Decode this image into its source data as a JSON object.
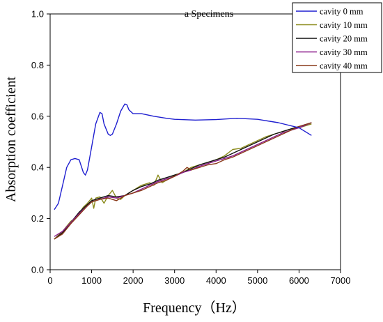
{
  "chart_data": {
    "type": "line",
    "title": "a Specimens",
    "xlabel": "Frequency（Hz）",
    "ylabel": "Absorption coefficient",
    "xlim": [
      0,
      7000
    ],
    "ylim": [
      0.0,
      1.0
    ],
    "xticks": [
      0,
      1000,
      2000,
      3000,
      4000,
      5000,
      6000,
      7000
    ],
    "yticks": [
      0.0,
      0.2,
      0.4,
      0.6,
      0.8,
      1.0
    ],
    "xtick_labels": [
      "0",
      "1000",
      "2000",
      "3000",
      "4000",
      "5000",
      "6000",
      "7000"
    ],
    "ytick_labels": [
      "0.0",
      "0.2",
      "0.4",
      "0.6",
      "0.8",
      "1.0"
    ],
    "grid": false,
    "legend_position": "top-right",
    "series": [
      {
        "name": "cavity 0 mm",
        "color": "#1f1fd0",
        "points": [
          [
            100,
            0.235
          ],
          [
            200,
            0.26
          ],
          [
            300,
            0.33
          ],
          [
            400,
            0.4
          ],
          [
            500,
            0.43
          ],
          [
            600,
            0.435
          ],
          [
            700,
            0.43
          ],
          [
            800,
            0.38
          ],
          [
            850,
            0.37
          ],
          [
            900,
            0.39
          ],
          [
            1000,
            0.48
          ],
          [
            1100,
            0.57
          ],
          [
            1200,
            0.615
          ],
          [
            1250,
            0.61
          ],
          [
            1300,
            0.57
          ],
          [
            1400,
            0.53
          ],
          [
            1450,
            0.525
          ],
          [
            1500,
            0.53
          ],
          [
            1600,
            0.57
          ],
          [
            1700,
            0.62
          ],
          [
            1800,
            0.648
          ],
          [
            1850,
            0.645
          ],
          [
            1900,
            0.625
          ],
          [
            2000,
            0.61
          ],
          [
            2200,
            0.61
          ],
          [
            2500,
            0.6
          ],
          [
            2800,
            0.592
          ],
          [
            3000,
            0.588
          ],
          [
            3500,
            0.585
          ],
          [
            4000,
            0.587
          ],
          [
            4500,
            0.592
          ],
          [
            5000,
            0.588
          ],
          [
            5500,
            0.575
          ],
          [
            6000,
            0.555
          ],
          [
            6300,
            0.525
          ]
        ]
      },
      {
        "name": "cavity 10 mm",
        "color": "#8a8a1a",
        "points": [
          [
            100,
            0.12
          ],
          [
            300,
            0.15
          ],
          [
            400,
            0.17
          ],
          [
            500,
            0.19
          ],
          [
            600,
            0.2
          ],
          [
            700,
            0.22
          ],
          [
            800,
            0.245
          ],
          [
            900,
            0.26
          ],
          [
            1000,
            0.28
          ],
          [
            1050,
            0.24
          ],
          [
            1100,
            0.28
          ],
          [
            1200,
            0.285
          ],
          [
            1300,
            0.26
          ],
          [
            1400,
            0.29
          ],
          [
            1500,
            0.31
          ],
          [
            1600,
            0.28
          ],
          [
            1700,
            0.275
          ],
          [
            1800,
            0.29
          ],
          [
            2000,
            0.31
          ],
          [
            2200,
            0.33
          ],
          [
            2400,
            0.34
          ],
          [
            2500,
            0.33
          ],
          [
            2600,
            0.37
          ],
          [
            2700,
            0.34
          ],
          [
            2800,
            0.35
          ],
          [
            3000,
            0.37
          ],
          [
            3200,
            0.38
          ],
          [
            3400,
            0.4
          ],
          [
            3600,
            0.41
          ],
          [
            3800,
            0.42
          ],
          [
            4000,
            0.43
          ],
          [
            4200,
            0.445
          ],
          [
            4400,
            0.47
          ],
          [
            4600,
            0.475
          ],
          [
            4800,
            0.49
          ],
          [
            5000,
            0.505
          ],
          [
            5200,
            0.52
          ],
          [
            5400,
            0.53
          ],
          [
            5600,
            0.54
          ],
          [
            5800,
            0.55
          ],
          [
            6000,
            0.555
          ],
          [
            6300,
            0.57
          ]
        ]
      },
      {
        "name": "cavity 20 mm",
        "color": "#111111",
        "points": [
          [
            100,
            0.12
          ],
          [
            300,
            0.145
          ],
          [
            500,
            0.185
          ],
          [
            700,
            0.225
          ],
          [
            900,
            0.255
          ],
          [
            1000,
            0.27
          ],
          [
            1200,
            0.28
          ],
          [
            1400,
            0.29
          ],
          [
            1600,
            0.285
          ],
          [
            1800,
            0.29
          ],
          [
            2000,
            0.31
          ],
          [
            2200,
            0.325
          ],
          [
            2400,
            0.335
          ],
          [
            2600,
            0.35
          ],
          [
            2800,
            0.36
          ],
          [
            3000,
            0.37
          ],
          [
            3200,
            0.38
          ],
          [
            3400,
            0.395
          ],
          [
            3600,
            0.41
          ],
          [
            3800,
            0.42
          ],
          [
            4000,
            0.43
          ],
          [
            4200,
            0.44
          ],
          [
            4400,
            0.455
          ],
          [
            4600,
            0.47
          ],
          [
            4800,
            0.485
          ],
          [
            5000,
            0.5
          ],
          [
            5200,
            0.515
          ],
          [
            5400,
            0.53
          ],
          [
            5600,
            0.54
          ],
          [
            5800,
            0.55
          ],
          [
            6000,
            0.56
          ],
          [
            6300,
            0.575
          ]
        ]
      },
      {
        "name": "cavity 30 mm",
        "color": "#8a1a8a",
        "points": [
          [
            100,
            0.13
          ],
          [
            300,
            0.15
          ],
          [
            500,
            0.185
          ],
          [
            700,
            0.22
          ],
          [
            900,
            0.25
          ],
          [
            1000,
            0.265
          ],
          [
            1200,
            0.275
          ],
          [
            1400,
            0.285
          ],
          [
            1600,
            0.28
          ],
          [
            1800,
            0.29
          ],
          [
            2000,
            0.3
          ],
          [
            2200,
            0.315
          ],
          [
            2400,
            0.33
          ],
          [
            2600,
            0.345
          ],
          [
            2800,
            0.355
          ],
          [
            3000,
            0.365
          ],
          [
            3200,
            0.38
          ],
          [
            3400,
            0.39
          ],
          [
            3600,
            0.405
          ],
          [
            3800,
            0.415
          ],
          [
            4000,
            0.425
          ],
          [
            4200,
            0.435
          ],
          [
            4400,
            0.445
          ],
          [
            4600,
            0.46
          ],
          [
            4800,
            0.475
          ],
          [
            5000,
            0.49
          ],
          [
            5200,
            0.505
          ],
          [
            5400,
            0.52
          ],
          [
            5600,
            0.535
          ],
          [
            5800,
            0.545
          ],
          [
            6000,
            0.555
          ],
          [
            6300,
            0.575
          ]
        ]
      },
      {
        "name": "cavity 40 mm",
        "color": "#8a3a1a",
        "points": [
          [
            100,
            0.12
          ],
          [
            300,
            0.14
          ],
          [
            500,
            0.18
          ],
          [
            700,
            0.215
          ],
          [
            900,
            0.25
          ],
          [
            1000,
            0.265
          ],
          [
            1200,
            0.275
          ],
          [
            1400,
            0.28
          ],
          [
            1600,
            0.27
          ],
          [
            1800,
            0.29
          ],
          [
            2000,
            0.3
          ],
          [
            2200,
            0.31
          ],
          [
            2400,
            0.325
          ],
          [
            2600,
            0.34
          ],
          [
            2800,
            0.35
          ],
          [
            3000,
            0.365
          ],
          [
            3200,
            0.385
          ],
          [
            3300,
            0.4
          ],
          [
            3400,
            0.39
          ],
          [
            3600,
            0.4
          ],
          [
            3800,
            0.41
          ],
          [
            4000,
            0.415
          ],
          [
            4200,
            0.43
          ],
          [
            4400,
            0.44
          ],
          [
            4600,
            0.455
          ],
          [
            4800,
            0.47
          ],
          [
            5000,
            0.485
          ],
          [
            5200,
            0.5
          ],
          [
            5400,
            0.515
          ],
          [
            5600,
            0.53
          ],
          [
            5800,
            0.545
          ],
          [
            6000,
            0.56
          ],
          [
            6300,
            0.575
          ]
        ]
      }
    ]
  }
}
